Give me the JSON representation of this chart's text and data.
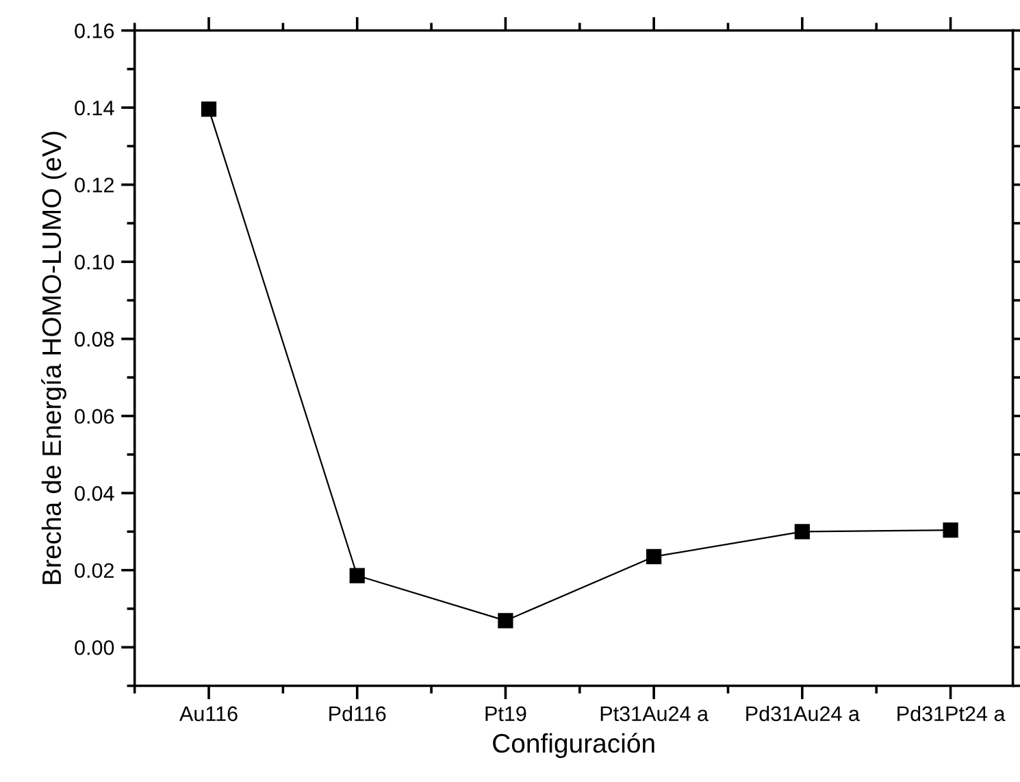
{
  "chart_data": {
    "type": "line",
    "xlabel": "Configuración",
    "ylabel": "Brecha de Energía HOMO-LUMO (eV)",
    "categories": [
      "Au116",
      "Pd116",
      "Pt19",
      "Pt31Au24 a",
      "Pd31Au24 a",
      "Pd31Pt24 a"
    ],
    "series": [
      {
        "color": "#000000",
        "values": [
          0.1396,
          0.0186,
          0.0069,
          0.0235,
          0.03,
          0.0304
        ]
      }
    ],
    "ylim": [
      -0.01,
      0.16
    ],
    "yticks": [
      {
        "value": 0,
        "label": "0.00"
      },
      {
        "value": 0.02,
        "label": "0.02"
      },
      {
        "value": 0.04,
        "label": "0.04"
      },
      {
        "value": 0.06,
        "label": "0.06"
      },
      {
        "value": 0.08,
        "label": "0.08"
      },
      {
        "value": 0.1,
        "label": "0.10"
      },
      {
        "value": 0.12,
        "label": "0.12"
      },
      {
        "value": 0.14,
        "label": "0.14"
      },
      {
        "value": 0.16,
        "label": "0.16"
      }
    ],
    "marker": "square",
    "line_style": "solid",
    "grid": false,
    "legend": false
  }
}
